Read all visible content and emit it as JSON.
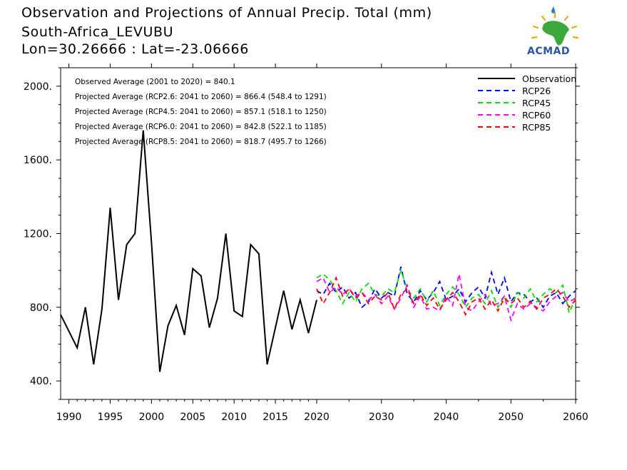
{
  "header": {
    "title_line1": "Observation and Projections of Annual Precip. Total (mm)",
    "title_line2": "South-Africa_LEVUBU",
    "title_line3": "Lon=30.26666 : Lat=-23.06666"
  },
  "logo": {
    "text": "ACMAD",
    "icon": "africa-map-sun-logo"
  },
  "chart_data": {
    "type": "line",
    "xlim": [
      1989,
      2060
    ],
    "ylim": [
      300,
      2100
    ],
    "y_ticks": [
      {
        "value": 400,
        "label": "400."
      },
      {
        "value": 800,
        "label": "800."
      },
      {
        "value": 1200,
        "label": "1200."
      },
      {
        "value": 1600,
        "label": "1600."
      },
      {
        "value": 2000,
        "label": "2000."
      }
    ],
    "x_ticks": [
      {
        "value": 1990,
        "label": "1990"
      },
      {
        "value": 1995,
        "label": "1995"
      },
      {
        "value": 2000,
        "label": "2000"
      },
      {
        "value": 2005,
        "label": "2005"
      },
      {
        "value": 2010,
        "label": "2010"
      },
      {
        "value": 2015,
        "label": "2015"
      },
      {
        "value": 2020,
        "label": "2020"
      },
      {
        "value": 2030,
        "label": "2030"
      },
      {
        "value": 2040,
        "label": "2040"
      },
      {
        "value": 2050,
        "label": "2050"
      },
      {
        "value": 2060,
        "label": "2060"
      }
    ],
    "annotations": [
      "Observed Average (2001 to 2020) = 840.1",
      "Projected Average (RCP2.6: 2041 to 2060) = 866.4 (548.4 to 1291)",
      "Projected Average (RCP4.5: 2041 to 2060) = 857.1 (518.1 to 1250)",
      "Projected Average (RCP6.0: 2041 to 2060) = 842.8 (522.1 to 1185)",
      "Projected Average (RCP8.5: 2041 to 2060) = 818.7 (495.7 to 1266)"
    ],
    "legend_position": "top-right",
    "series": [
      {
        "name": "Observation",
        "color": "#000000",
        "dash": "solid",
        "x": [
          1989,
          1990,
          1991,
          1992,
          1993,
          1994,
          1995,
          1996,
          1997,
          1998,
          1999,
          2000,
          2001,
          2002,
          2003,
          2004,
          2005,
          2006,
          2007,
          2008,
          2009,
          2010,
          2011,
          2012,
          2013,
          2014,
          2015,
          2016,
          2017,
          2018,
          2019,
          2020
        ],
        "y": [
          760,
          670,
          580,
          800,
          490,
          790,
          1340,
          840,
          1140,
          1200,
          1760,
          1150,
          450,
          700,
          810,
          650,
          1010,
          970,
          690,
          850,
          1200,
          780,
          750,
          1140,
          1090,
          490,
          690,
          890,
          680,
          840,
          660,
          840
        ]
      },
      {
        "name": "RCP26",
        "color": "#0000ff",
        "dash": "dashed",
        "x": [
          2020,
          2021,
          2022,
          2023,
          2024,
          2025,
          2026,
          2027,
          2028,
          2029,
          2030,
          2031,
          2032,
          2033,
          2034,
          2035,
          2036,
          2037,
          2038,
          2039,
          2040,
          2041,
          2042,
          2043,
          2044,
          2045,
          2046,
          2047,
          2048,
          2049,
          2050,
          2051,
          2052,
          2053,
          2054,
          2055,
          2056,
          2057,
          2058,
          2059,
          2060
        ],
        "y": [
          890,
          870,
          930,
          880,
          910,
          850,
          880,
          800,
          830,
          900,
          850,
          880,
          860,
          1020,
          870,
          830,
          890,
          840,
          880,
          940,
          840,
          860,
          900,
          830,
          880,
          910,
          850,
          990,
          870,
          960,
          830,
          880,
          870,
          830,
          850,
          800,
          860,
          880,
          820,
          860,
          890
        ]
      },
      {
        "name": "RCP45",
        "color": "#00dd00",
        "dash": "dashed",
        "x": [
          2020,
          2021,
          2022,
          2023,
          2024,
          2025,
          2026,
          2027,
          2028,
          2029,
          2030,
          2031,
          2032,
          2033,
          2034,
          2035,
          2036,
          2037,
          2038,
          2039,
          2040,
          2041,
          2042,
          2043,
          2044,
          2045,
          2046,
          2047,
          2048,
          2049,
          2050,
          2051,
          2052,
          2053,
          2054,
          2055,
          2056,
          2057,
          2058,
          2059,
          2060
        ],
        "y": [
          960,
          980,
          950,
          890,
          820,
          880,
          830,
          900,
          930,
          870,
          860,
          900,
          880,
          1000,
          900,
          850,
          900,
          830,
          890,
          810,
          870,
          910,
          870,
          800,
          850,
          870,
          820,
          890,
          800,
          860,
          800,
          880,
          850,
          900,
          830,
          870,
          900,
          880,
          920,
          770,
          850
        ]
      },
      {
        "name": "RCP60",
        "color": "#ff00ff",
        "dash": "dashed",
        "x": [
          2020,
          2021,
          2022,
          2023,
          2024,
          2025,
          2026,
          2027,
          2028,
          2029,
          2030,
          2031,
          2032,
          2033,
          2034,
          2035,
          2036,
          2037,
          2038,
          2039,
          2040,
          2041,
          2042,
          2043,
          2044,
          2045,
          2046,
          2047,
          2048,
          2049,
          2050,
          2051,
          2052,
          2053,
          2054,
          2055,
          2056,
          2057,
          2058,
          2059,
          2060
        ],
        "y": [
          940,
          960,
          880,
          910,
          870,
          900,
          860,
          880,
          840,
          870,
          820,
          860,
          790,
          850,
          920,
          800,
          860,
          790,
          800,
          780,
          860,
          810,
          980,
          800,
          780,
          830,
          870,
          810,
          820,
          860,
          730,
          820,
          790,
          820,
          800,
          780,
          830,
          860,
          880,
          830,
          850
        ]
      },
      {
        "name": "RCP85",
        "color": "#ff0000",
        "dash": "dashed",
        "x": [
          2020,
          2021,
          2022,
          2023,
          2024,
          2025,
          2026,
          2027,
          2028,
          2029,
          2030,
          2031,
          2032,
          2033,
          2034,
          2035,
          2036,
          2037,
          2038,
          2039,
          2040,
          2041,
          2042,
          2043,
          2044,
          2045,
          2046,
          2047,
          2048,
          2049,
          2050,
          2051,
          2052,
          2053,
          2054,
          2055,
          2056,
          2057,
          2058,
          2059,
          2060
        ],
        "y": [
          900,
          820,
          880,
          960,
          860,
          900,
          850,
          880,
          820,
          860,
          840,
          880,
          790,
          870,
          900,
          820,
          870,
          810,
          850,
          790,
          840,
          880,
          830,
          760,
          830,
          850,
          790,
          840,
          780,
          850,
          820,
          850,
          800,
          830,
          790,
          850,
          870,
          900,
          860,
          800,
          840
        ]
      }
    ]
  }
}
